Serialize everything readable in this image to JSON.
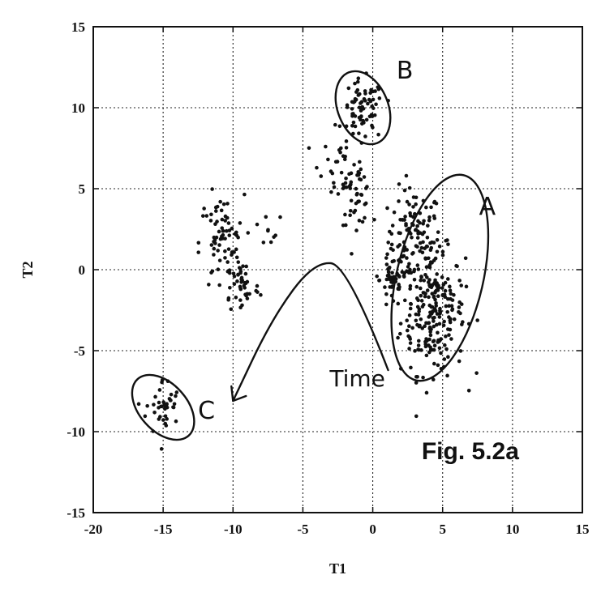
{
  "chart_data": {
    "type": "scatter",
    "title": "",
    "xlabel": "T1",
    "ylabel": "T2",
    "xlim": [
      -20,
      15
    ],
    "ylim": [
      -15,
      15
    ],
    "xticks": [
      -20,
      -15,
      -10,
      -5,
      0,
      5,
      10,
      15
    ],
    "yticks": [
      -15,
      -10,
      -5,
      0,
      5,
      10,
      15
    ],
    "xtick_labels": [
      "-20",
      "-15",
      "-10",
      "-5",
      "0",
      "5",
      "10",
      "15"
    ],
    "ytick_labels": [
      "-15",
      "-10",
      "-5",
      "0",
      "5",
      "10",
      "15"
    ],
    "grid": true,
    "figure_label": "Fig. 5.2a",
    "annotations": [
      {
        "text": "A",
        "x": 8.2,
        "y": 3.4
      },
      {
        "text": "B",
        "x": 2.3,
        "y": 11.8
      },
      {
        "text": "C",
        "x": -11.9,
        "y": -9.2
      },
      {
        "text": "Time",
        "x": -1.1,
        "y": -7.2
      }
    ],
    "encircled_groups": [
      {
        "name": "A",
        "center": [
          4.8,
          -0.5
        ],
        "radii": [
          3.1,
          6.5
        ],
        "rotation_deg": 13
      },
      {
        "name": "B",
        "center": [
          -0.7,
          10.0
        ],
        "radii": [
          1.8,
          2.35
        ],
        "rotation_deg": -22
      },
      {
        "name": "C",
        "center": [
          -15.0,
          -8.5
        ],
        "radii": [
          1.7,
          2.35
        ],
        "rotation_deg": -42
      }
    ],
    "time_arrow": {
      "path": [
        [
          1.1,
          -6.2
        ],
        [
          -1.8,
          0.3
        ],
        [
          -4.2,
          0.5
        ],
        [
          -7.2,
          -3.0
        ],
        [
          -10.0,
          -8.1
        ]
      ],
      "arrowhead_at": [
        -10.0,
        -8.1
      ]
    },
    "clusters": [
      {
        "name": "A upper",
        "cx": 3.0,
        "cy": 1.8,
        "sx": 0.95,
        "sy": 1.6,
        "n": 120
      },
      {
        "name": "A lower",
        "cx": 4.3,
        "cy": -2.6,
        "sx": 1.15,
        "sy": 1.9,
        "n": 230
      },
      {
        "name": "A left edge",
        "cx": 1.4,
        "cy": -0.6,
        "sx": 0.45,
        "sy": 0.9,
        "n": 40
      },
      {
        "name": "B",
        "cx": -0.7,
        "cy": 9.8,
        "sx": 0.75,
        "sy": 0.95,
        "n": 70
      },
      {
        "name": "B trail",
        "cx": -2.0,
        "cy": 6.5,
        "sx": 0.9,
        "sy": 1.0,
        "n": 35
      },
      {
        "name": "middle",
        "cx": -1.2,
        "cy": 4.6,
        "sx": 0.55,
        "sy": 0.9,
        "n": 40
      },
      {
        "name": "left cluster 1",
        "cx": -10.8,
        "cy": 1.6,
        "sx": 0.8,
        "sy": 1.5,
        "n": 75
      },
      {
        "name": "left cluster 2",
        "cx": -9.3,
        "cy": -1.0,
        "sx": 0.6,
        "sy": 0.9,
        "n": 40
      },
      {
        "name": "left stray",
        "cx": -7.2,
        "cy": 2.6,
        "sx": 0.5,
        "sy": 0.7,
        "n": 8
      },
      {
        "name": "C",
        "cx": -15.0,
        "cy": -8.5,
        "sx": 0.6,
        "sy": 0.9,
        "n": 40
      }
    ]
  }
}
